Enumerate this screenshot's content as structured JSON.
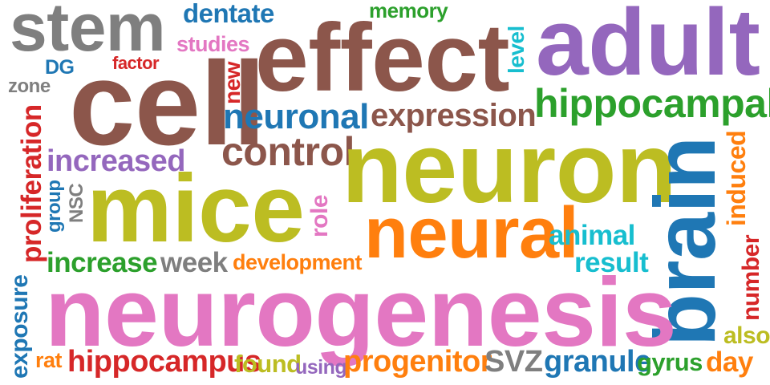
{
  "words": [
    {
      "id": "stem",
      "text": "stem",
      "color": "#7f7f7f"
    },
    {
      "id": "dentate",
      "text": "dentate",
      "color": "#1f77b4"
    },
    {
      "id": "memory",
      "text": "memory",
      "color": "#2ca02c"
    },
    {
      "id": "effect",
      "text": "effect",
      "color": "#8c564b"
    },
    {
      "id": "adult",
      "text": "adult",
      "color": "#9467bd"
    },
    {
      "id": "level",
      "text": "level",
      "color": "#17becf"
    },
    {
      "id": "studies",
      "text": "studies",
      "color": "#e377c2"
    },
    {
      "id": "factor",
      "text": "factor",
      "color": "#d62728"
    },
    {
      "id": "dg",
      "text": "DG",
      "color": "#1f77b4"
    },
    {
      "id": "zone",
      "text": "zone",
      "color": "#7f7f7f"
    },
    {
      "id": "cell",
      "text": "cell",
      "color": "#8c564b"
    },
    {
      "id": "new",
      "text": "new",
      "color": "#d62728"
    },
    {
      "id": "neuronal",
      "text": "neuronal",
      "color": "#1f77b4"
    },
    {
      "id": "expression",
      "text": "expression",
      "color": "#8c564b"
    },
    {
      "id": "hippocampal",
      "text": "hippocampal",
      "color": "#2ca02c"
    },
    {
      "id": "proliferation",
      "text": "proliferation",
      "color": "#d62728"
    },
    {
      "id": "increased",
      "text": "increased",
      "color": "#9467bd"
    },
    {
      "id": "control",
      "text": "control",
      "color": "#8c564b"
    },
    {
      "id": "neuron",
      "text": "neuron",
      "color": "#bcbd22"
    },
    {
      "id": "induced",
      "text": "induced",
      "color": "#ff7f0e"
    },
    {
      "id": "group",
      "text": "group",
      "color": "#1f77b4"
    },
    {
      "id": "nsc",
      "text": "NSC",
      "color": "#7f7f7f"
    },
    {
      "id": "mice",
      "text": "mice",
      "color": "#bcbd22"
    },
    {
      "id": "role",
      "text": "role",
      "color": "#e377c2"
    },
    {
      "id": "neural",
      "text": "neural",
      "color": "#ff7f0e"
    },
    {
      "id": "brain",
      "text": "brain",
      "color": "#1f77b4"
    },
    {
      "id": "animal",
      "text": "animal",
      "color": "#17becf"
    },
    {
      "id": "number",
      "text": "number",
      "color": "#d62728"
    },
    {
      "id": "increase",
      "text": "increase",
      "color": "#2ca02c"
    },
    {
      "id": "week",
      "text": "week",
      "color": "#7f7f7f"
    },
    {
      "id": "development",
      "text": "development",
      "color": "#ff7f0e"
    },
    {
      "id": "result",
      "text": "result",
      "color": "#17becf"
    },
    {
      "id": "exposure",
      "text": "exposure",
      "color": "#1f77b4"
    },
    {
      "id": "neurogenesis",
      "text": "neurogenesis",
      "color": "#e377c2"
    },
    {
      "id": "also",
      "text": "also",
      "color": "#bcbd22"
    },
    {
      "id": "rat",
      "text": "rat",
      "color": "#ff7f0e"
    },
    {
      "id": "hippocampus",
      "text": "hippocampus",
      "color": "#d62728"
    },
    {
      "id": "found",
      "text": "found",
      "color": "#bcbd22"
    },
    {
      "id": "using",
      "text": "using",
      "color": "#9467bd"
    },
    {
      "id": "progenitor",
      "text": "progenitor",
      "color": "#ff7f0e"
    },
    {
      "id": "svz",
      "text": "SVZ",
      "color": "#7f7f7f"
    },
    {
      "id": "granule",
      "text": "granule",
      "color": "#1f77b4"
    },
    {
      "id": "gyrus",
      "text": "gyrus",
      "color": "#2ca02c"
    },
    {
      "id": "day",
      "text": "day",
      "color": "#ff7f0e"
    }
  ]
}
